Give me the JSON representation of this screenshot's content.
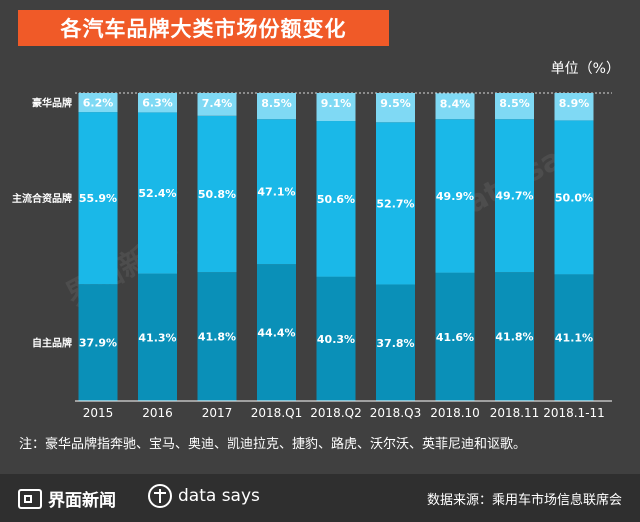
{
  "title": "各汽车品牌大类市场份额变化",
  "unit_label": "单位（%）",
  "note": "注：豪华品牌指奔驰、宝马、奥迪、凯迪拉克、捷豹、路虎、沃尔沃、英菲尼迪和讴歌。",
  "footer": {
    "brand": "界面新闻",
    "datasays": "data says",
    "source": "数据来源：乘用车市场信息联席会"
  },
  "watermarks": [
    "界面新闻",
    "data says"
  ],
  "colors": {
    "background": "#404040",
    "title_bg": "#f05a28",
    "luxury": "#7fd9f4",
    "mainstream": "#1ab8e8",
    "domestic": "#0a90b8"
  },
  "chart_data": {
    "type": "bar",
    "stacked": true,
    "title": "各汽车品牌大类市场份额变化",
    "ylabel": "单位（%）",
    "ylim": [
      0,
      100
    ],
    "categories": [
      "2015",
      "2016",
      "2017",
      "2018.Q1",
      "2018.Q2",
      "2018.Q3",
      "2018.10",
      "2018.11",
      "2018.1-11"
    ],
    "series": [
      {
        "name": "自主品牌",
        "values": [
          37.9,
          41.3,
          41.8,
          44.4,
          40.3,
          37.8,
          41.6,
          41.8,
          41.1
        ]
      },
      {
        "name": "主流合资品牌",
        "values": [
          55.9,
          52.4,
          50.8,
          47.1,
          50.6,
          52.7,
          49.9,
          49.7,
          50.0
        ]
      },
      {
        "name": "豪华品牌",
        "values": [
          6.2,
          6.3,
          7.4,
          8.5,
          9.1,
          9.5,
          8.4,
          8.5,
          8.9
        ]
      }
    ]
  }
}
